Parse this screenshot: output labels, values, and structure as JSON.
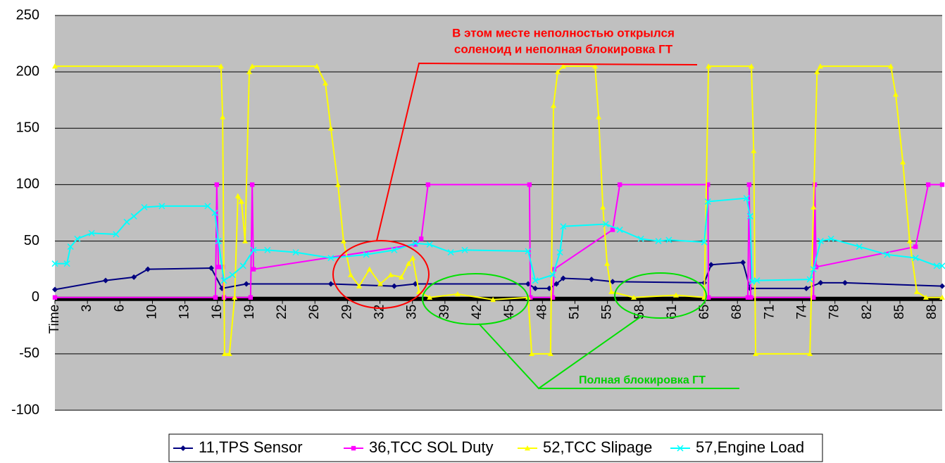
{
  "chart_data": {
    "type": "line",
    "ylim": [
      -100,
      250
    ],
    "yticks": [
      -100,
      -50,
      0,
      50,
      100,
      150,
      200,
      250
    ],
    "xlim": [
      0,
      27.3
    ],
    "xticks": [
      {
        "value": 0,
        "label": "Time"
      },
      {
        "value": 1,
        "label": "3"
      },
      {
        "value": 2,
        "label": "6"
      },
      {
        "value": 3,
        "label": "10"
      },
      {
        "value": 4,
        "label": "13"
      },
      {
        "value": 5,
        "label": "16"
      },
      {
        "value": 6,
        "label": "19"
      },
      {
        "value": 7,
        "label": "22"
      },
      {
        "value": 8,
        "label": "26"
      },
      {
        "value": 9,
        "label": "29"
      },
      {
        "value": 10,
        "label": "32"
      },
      {
        "value": 11,
        "label": "35"
      },
      {
        "value": 12,
        "label": "39"
      },
      {
        "value": 13,
        "label": "42"
      },
      {
        "value": 14,
        "label": "45"
      },
      {
        "value": 15,
        "label": "48"
      },
      {
        "value": 16,
        "label": "51"
      },
      {
        "value": 17,
        "label": "55"
      },
      {
        "value": 18,
        "label": "58"
      },
      {
        "value": 19,
        "label": "61"
      },
      {
        "value": 20,
        "label": "65"
      },
      {
        "value": 21,
        "label": "68"
      },
      {
        "value": 22,
        "label": "71"
      },
      {
        "value": 23,
        "label": "74"
      },
      {
        "value": 24,
        "label": "78"
      },
      {
        "value": 25,
        "label": "82"
      },
      {
        "value": 26,
        "label": "85"
      },
      {
        "value": 27,
        "label": "88"
      }
    ],
    "grid": true,
    "legend": "bottom",
    "series": [
      {
        "name": "11,TPS Sensor",
        "color": "#000080",
        "marker": "diamond",
        "x": [
          0,
          1.56,
          2.43,
          2.86,
          4.81,
          5.14,
          5.89,
          8.49,
          10.44,
          11.09,
          14.56,
          14.78,
          15.21,
          15.43,
          15.64,
          16.51,
          17.16,
          19.98,
          20.19,
          21.17,
          21.39,
          23.12,
          23.56,
          24.31,
          27.3
        ],
        "values": [
          7,
          15,
          18,
          25,
          26,
          8,
          12,
          12,
          10,
          12,
          12,
          8,
          8,
          12,
          17,
          16,
          14,
          13,
          29,
          31,
          8,
          8,
          13,
          13,
          10
        ]
      },
      {
        "name": "36,TCC SOL Duty",
        "color": "#FF00FF",
        "marker": "square",
        "x": [
          0,
          4.94,
          4.98,
          5.03,
          5.16,
          5.2,
          6.02,
          6.07,
          6.11,
          11.09,
          11.27,
          11.48,
          14.6,
          14.63,
          15.32,
          15.36,
          17.16,
          17.38,
          20.09,
          20.11,
          21.32,
          21.36,
          21.41,
          23.34,
          23.38,
          23.42,
          26.48,
          26.87,
          27.3
        ],
        "values": [
          0,
          0,
          100,
          27,
          27,
          0,
          0,
          100,
          25,
          47,
          52,
          100,
          100,
          0,
          0,
          25,
          60,
          100,
          100,
          0,
          0,
          100,
          0,
          0,
          100,
          27,
          45,
          100,
          100
        ]
      },
      {
        "name": "52,TCC Slipage",
        "color": "#FFFF00",
        "marker": "triangle",
        "x": [
          0,
          5.11,
          5.16,
          5.22,
          5.37,
          5.53,
          5.63,
          5.74,
          5.85,
          5.98,
          6.07,
          8.06,
          8.32,
          8.49,
          8.71,
          8.88,
          9.1,
          9.36,
          9.68,
          10.01,
          10.33,
          10.66,
          10.88,
          11.01,
          11.2,
          11.53,
          12.39,
          13.48,
          14.56,
          14.67,
          15.25,
          15.34,
          15.47,
          15.64,
          16.62,
          16.73,
          16.86,
          16.99,
          17.12,
          17.81,
          19.11,
          19.98,
          20.11,
          21.43,
          21.5,
          21.56,
          23.23,
          23.34,
          23.45,
          23.55,
          25.72,
          25.87,
          26.09,
          26.3,
          26.52,
          26.8,
          27.3
        ],
        "values": [
          205,
          205,
          160,
          -50,
          -50,
          0,
          90,
          85,
          50,
          200,
          205,
          205,
          190,
          150,
          100,
          50,
          20,
          10,
          25,
          12,
          20,
          18,
          30,
          35,
          5,
          0,
          3,
          -2,
          0,
          -50,
          -50,
          170,
          200,
          205,
          205,
          160,
          80,
          30,
          5,
          0,
          2,
          0,
          205,
          205,
          130,
          -50,
          -50,
          80,
          200,
          205,
          205,
          180,
          120,
          50,
          5,
          0,
          0
        ]
      },
      {
        "name": "57,Engine Load",
        "color": "#00FFFF",
        "marker": "cross",
        "x": [
          0,
          0.37,
          0.48,
          0.69,
          1.13,
          1.88,
          2.21,
          2.43,
          2.75,
          3.29,
          4.7,
          4.92,
          5.03,
          5.2,
          5.46,
          5.79,
          6.11,
          6.54,
          7.41,
          8.49,
          9.58,
          10.44,
          11.09,
          11.53,
          12.18,
          12.61,
          14.56,
          14.78,
          15.32,
          15.54,
          15.64,
          16.95,
          17.38,
          18.03,
          18.57,
          18.89,
          19.98,
          20.09,
          21.28,
          21.39,
          21.45,
          21.6,
          23.23,
          23.34,
          23.56,
          23.88,
          24.75,
          25.61,
          26.48,
          27.13,
          27.3
        ],
        "values": [
          30,
          30,
          45,
          52,
          57,
          56,
          67,
          72,
          80,
          81,
          81,
          75,
          50,
          15,
          20,
          28,
          42,
          42,
          40,
          35,
          38,
          42,
          48,
          47,
          40,
          42,
          41,
          15,
          20,
          40,
          63,
          65,
          60,
          52,
          50,
          51,
          49,
          85,
          88,
          72,
          14,
          15,
          16,
          25,
          50,
          52,
          45,
          38,
          35,
          28,
          28
        ]
      }
    ],
    "annotations": {
      "red": [
        "В этом месте неполностью открылся",
        "соленоид и неполная блокировка ГТ"
      ],
      "green": "Полная блокировка ГТ"
    }
  }
}
